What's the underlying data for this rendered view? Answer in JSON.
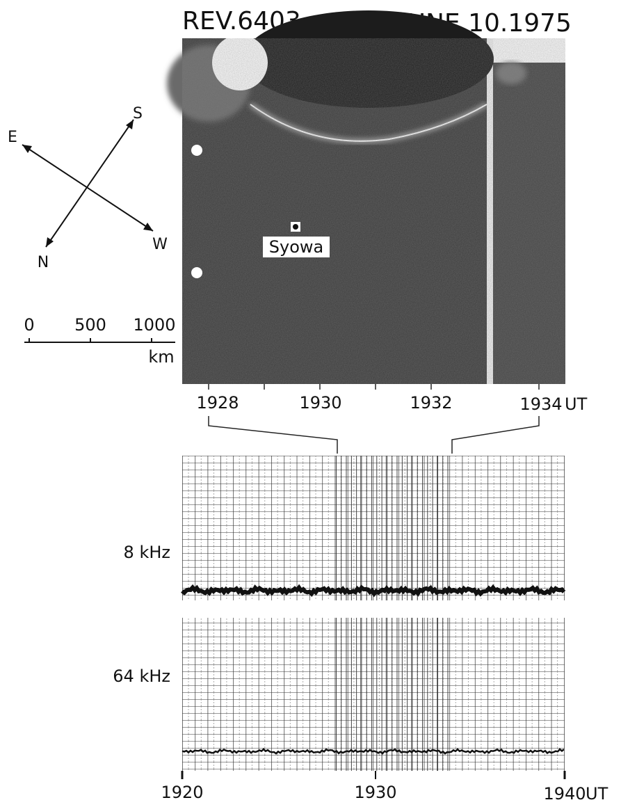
{
  "header": {
    "orbit": "REV.6403",
    "date": "JUNE 10.1975"
  },
  "compass": {
    "south": "S",
    "east": "E",
    "north": "N",
    "west": "W"
  },
  "scale_bar": {
    "ticks": [
      "0",
      "500",
      "1000"
    ],
    "unit": "km"
  },
  "image": {
    "station": "Syowa",
    "time_ticks": [
      "1928",
      "1930",
      "1932",
      "1934"
    ],
    "time_unit": "UT"
  },
  "records": {
    "channels": [
      "8 kHz",
      "64 kHz"
    ],
    "time_ticks": [
      "1920",
      "1930",
      "1940"
    ],
    "time_unit": "UT"
  }
}
